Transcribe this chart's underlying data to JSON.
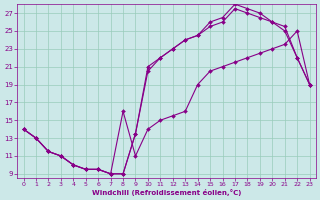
{
  "xlabel": "Windchill (Refroidissement éolien,°C)",
  "xlim": [
    -0.5,
    23.5
  ],
  "ylim": [
    8.5,
    28
  ],
  "xticks": [
    0,
    1,
    2,
    3,
    4,
    5,
    6,
    7,
    8,
    9,
    10,
    11,
    12,
    13,
    14,
    15,
    16,
    17,
    18,
    19,
    20,
    21,
    22,
    23
  ],
  "yticks": [
    9,
    11,
    13,
    15,
    17,
    19,
    21,
    23,
    25,
    27
  ],
  "bg_color": "#cce8e8",
  "grid_color": "#99ccbb",
  "line_color": "#880088",
  "line1_x": [
    0,
    1,
    2,
    3,
    4,
    5,
    6,
    7,
    8,
    9,
    10,
    11,
    12,
    13,
    14,
    15,
    16,
    17,
    18,
    19,
    20,
    21,
    22,
    23
  ],
  "line1_y": [
    14,
    13,
    11.5,
    11,
    10,
    9.5,
    9.5,
    9,
    9,
    13.5,
    20.5,
    22,
    23,
    24,
    24.5,
    25.5,
    26,
    27.5,
    27,
    26.5,
    26,
    25,
    22,
    19
  ],
  "line2_x": [
    0,
    1,
    2,
    3,
    4,
    5,
    6,
    7,
    8,
    9,
    10,
    11,
    12,
    13,
    14,
    15,
    16,
    17,
    18,
    19,
    20,
    21,
    22,
    23
  ],
  "line2_y": [
    14,
    13,
    11.5,
    11,
    10,
    9.5,
    9.5,
    9,
    16,
    11,
    14,
    15,
    15.5,
    16,
    19,
    20.5,
    21,
    21.5,
    22,
    22.5,
    23,
    23.5,
    25,
    19
  ],
  "line3_x": [
    0,
    1,
    2,
    3,
    4,
    5,
    6,
    7,
    8,
    9,
    10,
    11,
    12,
    13,
    14,
    15,
    16,
    17,
    18,
    19,
    20,
    21,
    22,
    23
  ],
  "line3_y": [
    14,
    13,
    11.5,
    11,
    10,
    9.5,
    9.5,
    9,
    9,
    13.5,
    21,
    22,
    23,
    24,
    24.5,
    26,
    26.5,
    28,
    27.5,
    27,
    26,
    25.5,
    22,
    19
  ]
}
